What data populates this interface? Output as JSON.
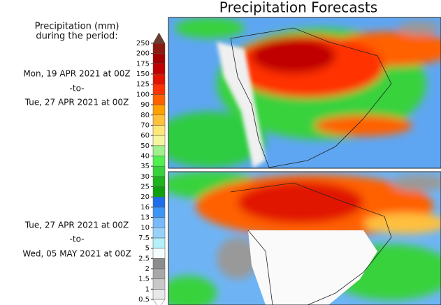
{
  "title": "Precipitation Forecasts",
  "legend": {
    "heading_line1": "Precipitation (mm)",
    "heading_line2": "during the period:"
  },
  "periods": [
    {
      "start": "Mon, 19 APR 2021 at 00Z",
      "separator": "-to-",
      "end": "Tue, 27 APR 2021 at 00Z"
    },
    {
      "start": "Tue, 27 APR 2021 at 00Z",
      "separator": "-to-",
      "end": "Wed, 05 MAY 2021 at 00Z"
    }
  ],
  "colorbar": {
    "ticks": [
      0.5,
      1,
      1.5,
      2,
      2.5,
      5,
      7.5,
      10,
      13,
      16,
      20,
      25,
      30,
      35,
      40,
      50,
      60,
      70,
      80,
      90,
      100,
      125,
      150,
      175,
      200,
      250
    ],
    "colors": [
      "#e8e8e8",
      "#c8c8c8",
      "#a8a8a8",
      "#8c8c8c",
      "#f4fcff",
      "#b4f0fa",
      "#96d2fa",
      "#78b9fa",
      "#3c96f5",
      "#1e6eeb",
      "#0fa00f",
      "#1eb41e",
      "#37d23c",
      "#50f050",
      "#a0f08c",
      "#f5f5a0",
      "#ffe878",
      "#ffc03c",
      "#ffa000",
      "#ff6000",
      "#ff3200",
      "#e11400",
      "#c00000",
      "#a50000",
      "#8b1a10"
    ],
    "over_color": "#6b3b2e",
    "under_color": "#ffffff"
  }
}
